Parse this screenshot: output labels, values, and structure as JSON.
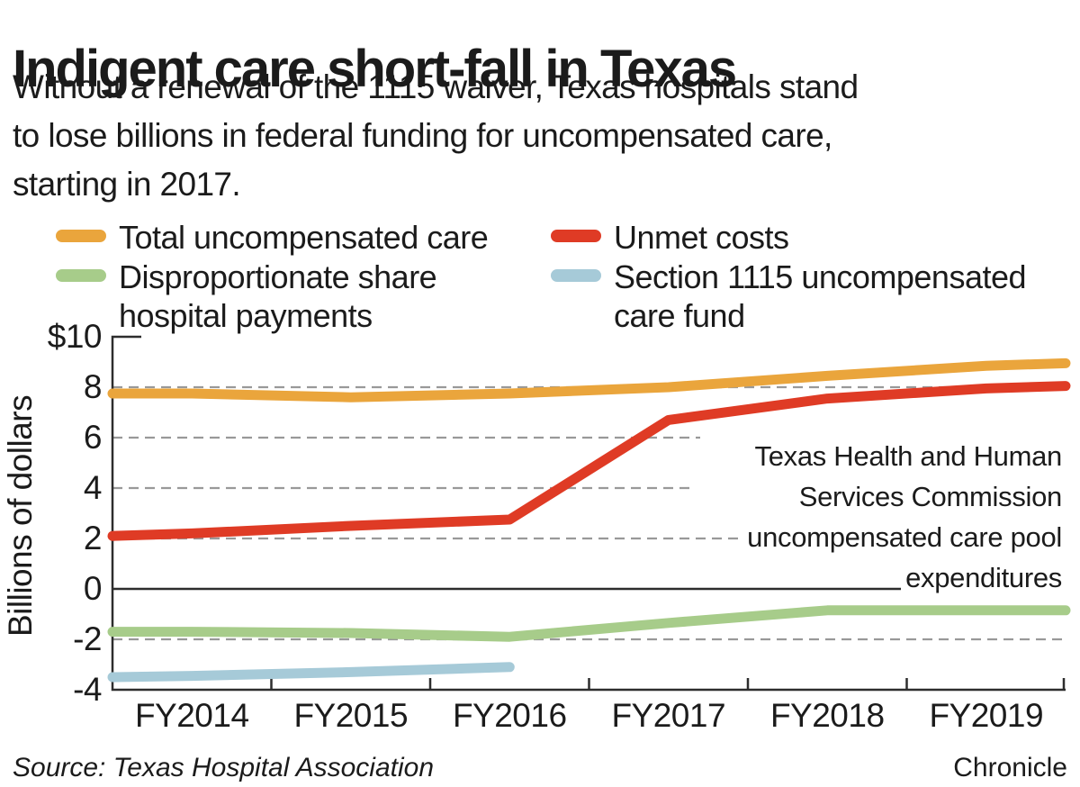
{
  "title": "Indigent care short-fall in Texas",
  "subtitle_lines": [
    "Without a renewal of the 1115 waiver, Texas hospitals stand",
    "to lose billions in federal funding for uncompensated care,",
    "starting in 2017."
  ],
  "legend": {
    "items": [
      {
        "color": "#EAA53C",
        "lines": [
          "Total uncompensated care",
          ""
        ]
      },
      {
        "color": "#DF3B25",
        "lines": [
          "Unmet costs",
          ""
        ]
      },
      {
        "color": "#A7CC8A",
        "lines": [
          "Disproportionate share",
          "hospital payments"
        ]
      },
      {
        "color": "#A6CAD8",
        "lines": [
          "Section 1115 uncompensated",
          "care fund"
        ]
      }
    ]
  },
  "annotation": {
    "lines": [
      "Texas Health and Human",
      "Services Commission",
      "uncompensated care pool",
      "expenditures"
    ]
  },
  "source": "Source: Texas Hospital Association",
  "credit": "Chronicle",
  "colors": {
    "text": "#1b1b1b",
    "grid": "#999999",
    "axis": "#2d2d2d",
    "zero_line": "#2d2d2d"
  },
  "chart_data": {
    "type": "line",
    "title": "Indigent care short-fall in Texas",
    "ylabel": "Billions of dollars",
    "ylim": [
      -4,
      10
    ],
    "xlim": [
      2013.5,
      2019.5
    ],
    "grid": "dashed horizontal gridlines at 8, 6, 4, 2, -2; solid black line at 0",
    "gridline_values": [
      8,
      6,
      4,
      2,
      -2
    ],
    "y_ticks": [
      {
        "label": "$10",
        "value": 10
      },
      {
        "label": "8",
        "value": 8
      },
      {
        "label": "6",
        "value": 6
      },
      {
        "label": "4",
        "value": 4
      },
      {
        "label": "2",
        "value": 2
      },
      {
        "label": "0",
        "value": 0
      },
      {
        "label": "-2",
        "value": -2
      },
      {
        "label": "-4",
        "value": -4
      }
    ],
    "categories": [
      "FY2014",
      "FY2015",
      "FY2016",
      "FY2017",
      "FY2018",
      "FY2019"
    ],
    "category_x": [
      2014,
      2015,
      2016,
      2017,
      2018,
      2019
    ],
    "legend_position": "top",
    "units": "billions of dollars",
    "series": [
      {
        "name": "Total uncompensated care",
        "color": "#EAA53C",
        "x": [
          2013.5,
          2014,
          2015,
          2016,
          2017,
          2018,
          2019,
          2019.5
        ],
        "values": [
          7.75,
          7.75,
          7.6,
          7.75,
          8.0,
          8.45,
          8.85,
          8.95
        ]
      },
      {
        "name": "Unmet costs",
        "color": "#DF3B25",
        "x": [
          2013.5,
          2014,
          2015,
          2016,
          2017,
          2018,
          2019,
          2019.5
        ],
        "values": [
          2.1,
          2.2,
          2.5,
          2.75,
          6.7,
          7.55,
          7.95,
          8.05
        ]
      },
      {
        "name": "Disproportionate share hospital payments",
        "color": "#A7CC8A",
        "x": [
          2013.5,
          2014,
          2015,
          2016,
          2017,
          2018,
          2019,
          2019.5
        ],
        "values": [
          -1.7,
          -1.7,
          -1.75,
          -1.9,
          -1.35,
          -0.85,
          -0.85,
          -0.85
        ]
      },
      {
        "name": "Section 1115 uncompensated care fund",
        "color": "#A6CAD8",
        "x": [
          2013.5,
          2014,
          2015,
          2016
        ],
        "values": [
          -3.5,
          -3.45,
          -3.3,
          -3.1
        ]
      }
    ]
  }
}
